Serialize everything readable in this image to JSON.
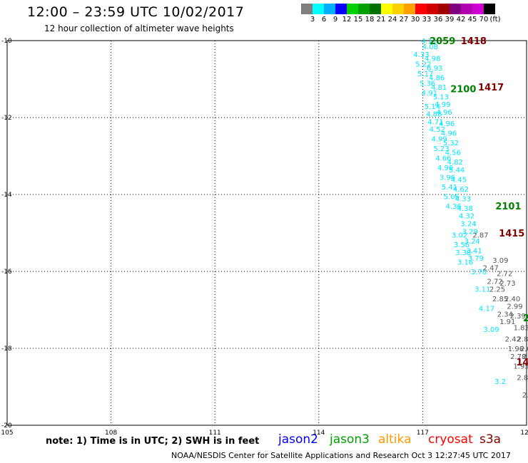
{
  "header": {
    "title": "12:00 – 23:59 UTC 10/02/2017",
    "subtitle": "12 hour collection of altimeter wave heights"
  },
  "scale": {
    "colors": [
      "#7f7f7f",
      "#00ffff",
      "#00b0ff",
      "#0000ff",
      "#00d000",
      "#00a000",
      "#007000",
      "#ffff00",
      "#ffd000",
      "#ffa000",
      "#ff0000",
      "#d00000",
      "#a00000",
      "#800080",
      "#b000b0",
      "#d000d0",
      "#000000"
    ],
    "labels": [
      "3",
      "6",
      "9",
      "12",
      "15",
      "18",
      "21",
      "24",
      "27",
      "30",
      "33",
      "36",
      "39",
      "42",
      "45",
      "70",
      "(ft)"
    ]
  },
  "axes": {
    "lon_ticks": [
      "105",
      "108",
      "111",
      "114",
      "117",
      "120"
    ],
    "lat_ticks": [
      "-10",
      "-12",
      "-14",
      "-16",
      "-18",
      "-20"
    ]
  },
  "tracks": [
    {
      "id": "jason3-cyan",
      "color": "#00e6ff",
      "points": [
        {
          "lat": -10.0,
          "v": "4.11"
        },
        {
          "lat": -10.15,
          "v": "4.08"
        },
        {
          "lat": -10.45,
          "v": "4.98"
        },
        {
          "lat": -10.7,
          "v": "6.93"
        },
        {
          "lat": -10.95,
          "v": "4.86"
        },
        {
          "lat": -11.2,
          "v": "4.81"
        },
        {
          "lat": -11.45,
          "v": "5.13"
        },
        {
          "lat": -11.65,
          "v": "4.99"
        },
        {
          "lat": -11.85,
          "v": "4.96"
        },
        {
          "lat": -12.15,
          "v": "4.96"
        },
        {
          "lat": -12.4,
          "v": "4.96"
        },
        {
          "lat": -12.65,
          "v": "5.32"
        },
        {
          "lat": -12.9,
          "v": "4.56"
        },
        {
          "lat": -13.15,
          "v": "4.82"
        },
        {
          "lat": -13.35,
          "v": "5.44"
        },
        {
          "lat": -13.6,
          "v": "4.45"
        },
        {
          "lat": -13.85,
          "v": "4.62"
        },
        {
          "lat": -14.1,
          "v": "4.33"
        },
        {
          "lat": -14.35,
          "v": "4.38"
        },
        {
          "lat": -14.55,
          "v": "4.32"
        },
        {
          "lat": -14.75,
          "v": "3.24"
        },
        {
          "lat": -14.95,
          "v": "3.29"
        },
        {
          "lat": -15.2,
          "v": "3.24"
        },
        {
          "lat": -15.45,
          "v": "3.41"
        },
        {
          "lat": -15.65,
          "v": "3.79"
        },
        {
          "lat": -16.0,
          "v": "3.78"
        },
        {
          "lat": -16.45,
          "v": "3.11"
        },
        {
          "lat": -16.95,
          "v": "4.17"
        },
        {
          "lat": -17.5,
          "v": "3.09"
        },
        {
          "lat": -18.85,
          "v": "3.2"
        }
      ]
    },
    {
      "id": "jason3-cyan-west",
      "color": "#00e6ff",
      "points": [
        {
          "lat": -10.35,
          "v": "4.33"
        },
        {
          "lat": -10.6,
          "v": "5.22"
        },
        {
          "lat": -10.85,
          "v": "5.17"
        },
        {
          "lat": -11.1,
          "v": "5.36"
        },
        {
          "lat": -11.35,
          "v": "4.91"
        },
        {
          "lat": -11.7,
          "v": "5.14"
        },
        {
          "lat": -11.9,
          "v": "4.88"
        },
        {
          "lat": -12.1,
          "v": "4.71"
        },
        {
          "lat": -12.3,
          "v": "4.52"
        },
        {
          "lat": -12.55,
          "v": "4.99"
        },
        {
          "lat": -12.8,
          "v": "5.23"
        },
        {
          "lat": -13.05,
          "v": "4.66"
        },
        {
          "lat": -13.3,
          "v": "4.99"
        },
        {
          "lat": -13.55,
          "v": "3.96"
        },
        {
          "lat": -13.8,
          "v": "5.41"
        },
        {
          "lat": -14.05,
          "v": "5.06"
        },
        {
          "lat": -14.3,
          "v": "4.36"
        },
        {
          "lat": -15.05,
          "v": "3.02"
        },
        {
          "lat": -15.3,
          "v": "3.56"
        },
        {
          "lat": -15.5,
          "v": "3.38"
        },
        {
          "lat": -15.75,
          "v": "3.16"
        }
      ]
    },
    {
      "id": "gray-track",
      "color": "#555555",
      "points": [
        {
          "lat": -15.05,
          "v": "2.87"
        },
        {
          "lat": -15.7,
          "v": "3.09"
        },
        {
          "lat": -15.9,
          "v": "2.47"
        },
        {
          "lat": -16.05,
          "v": "2.72"
        },
        {
          "lat": -16.25,
          "v": "2.72"
        },
        {
          "lat": -16.3,
          "v": "2.73"
        },
        {
          "lat": -16.45,
          "v": "2.25"
        },
        {
          "lat": -16.7,
          "v": "2.40"
        },
        {
          "lat": -16.7,
          "v": "2.85"
        },
        {
          "lat": -16.9,
          "v": "2.99"
        },
        {
          "lat": -17.1,
          "v": "2.34"
        },
        {
          "lat": -17.15,
          "v": "2.39"
        },
        {
          "lat": -17.3,
          "v": "1.91"
        },
        {
          "lat": -17.45,
          "v": "1.82"
        },
        {
          "lat": -17.75,
          "v": "2.42"
        },
        {
          "lat": -17.75,
          "v": "2.85"
        },
        {
          "lat": -18.0,
          "v": "1.96"
        },
        {
          "lat": -18.0,
          "v": "2.05"
        },
        {
          "lat": -18.2,
          "v": "2.78"
        },
        {
          "lat": -18.2,
          "v": "2.81"
        },
        {
          "lat": -18.45,
          "v": "1.95"
        },
        {
          "lat": -18.7,
          "v": "2.08"
        },
        {
          "lat": -18.75,
          "v": "2.8"
        },
        {
          "lat": -18.95,
          "v": "2.09"
        },
        {
          "lat": -19.2,
          "v": "2.03"
        },
        {
          "lat": -19.45,
          "v": "2.33"
        },
        {
          "lat": -19.7,
          "v": "1.87"
        },
        {
          "lat": -19.9,
          "v": "2.45"
        }
      ]
    }
  ],
  "time_labels": [
    {
      "text": "2059",
      "color": "#008000",
      "lon": 117.2,
      "lat": -10.0
    },
    {
      "text": "1418",
      "color": "#800000",
      "lon": 118.1,
      "lat": -10.0
    },
    {
      "text": "2100",
      "color": "#008000",
      "lon": 117.8,
      "lat": -11.25
    },
    {
      "text": "1417",
      "color": "#800000",
      "lon": 118.6,
      "lat": -11.2
    },
    {
      "text": "2101",
      "color": "#008000",
      "lon": 119.1,
      "lat": -14.3
    },
    {
      "text": "1415",
      "color": "#800000",
      "lon": 119.2,
      "lat": -15.0
    },
    {
      "text": "2",
      "color": "#008000",
      "lon": 119.9,
      "lat": -17.2
    },
    {
      "text": "141",
      "color": "#800000",
      "lon": 119.7,
      "lat": -18.35
    }
  ],
  "note": "note: 1) Time is in UTC; 2) SWH is in feet",
  "satellites": [
    {
      "name": "jason2",
      "color": "#0000ff"
    },
    {
      "name": "jason3",
      "color": "#00a000"
    },
    {
      "name": "altika",
      "color": "#ff9900"
    },
    {
      "name": "cryosat",
      "color": "#ff0000"
    },
    {
      "name": "s3a",
      "color": "#800000"
    }
  ],
  "footer": "NOAA/NESDIS Center for Satellite Applications and Research   Oct  3 12:27:45 UTC 2017"
}
